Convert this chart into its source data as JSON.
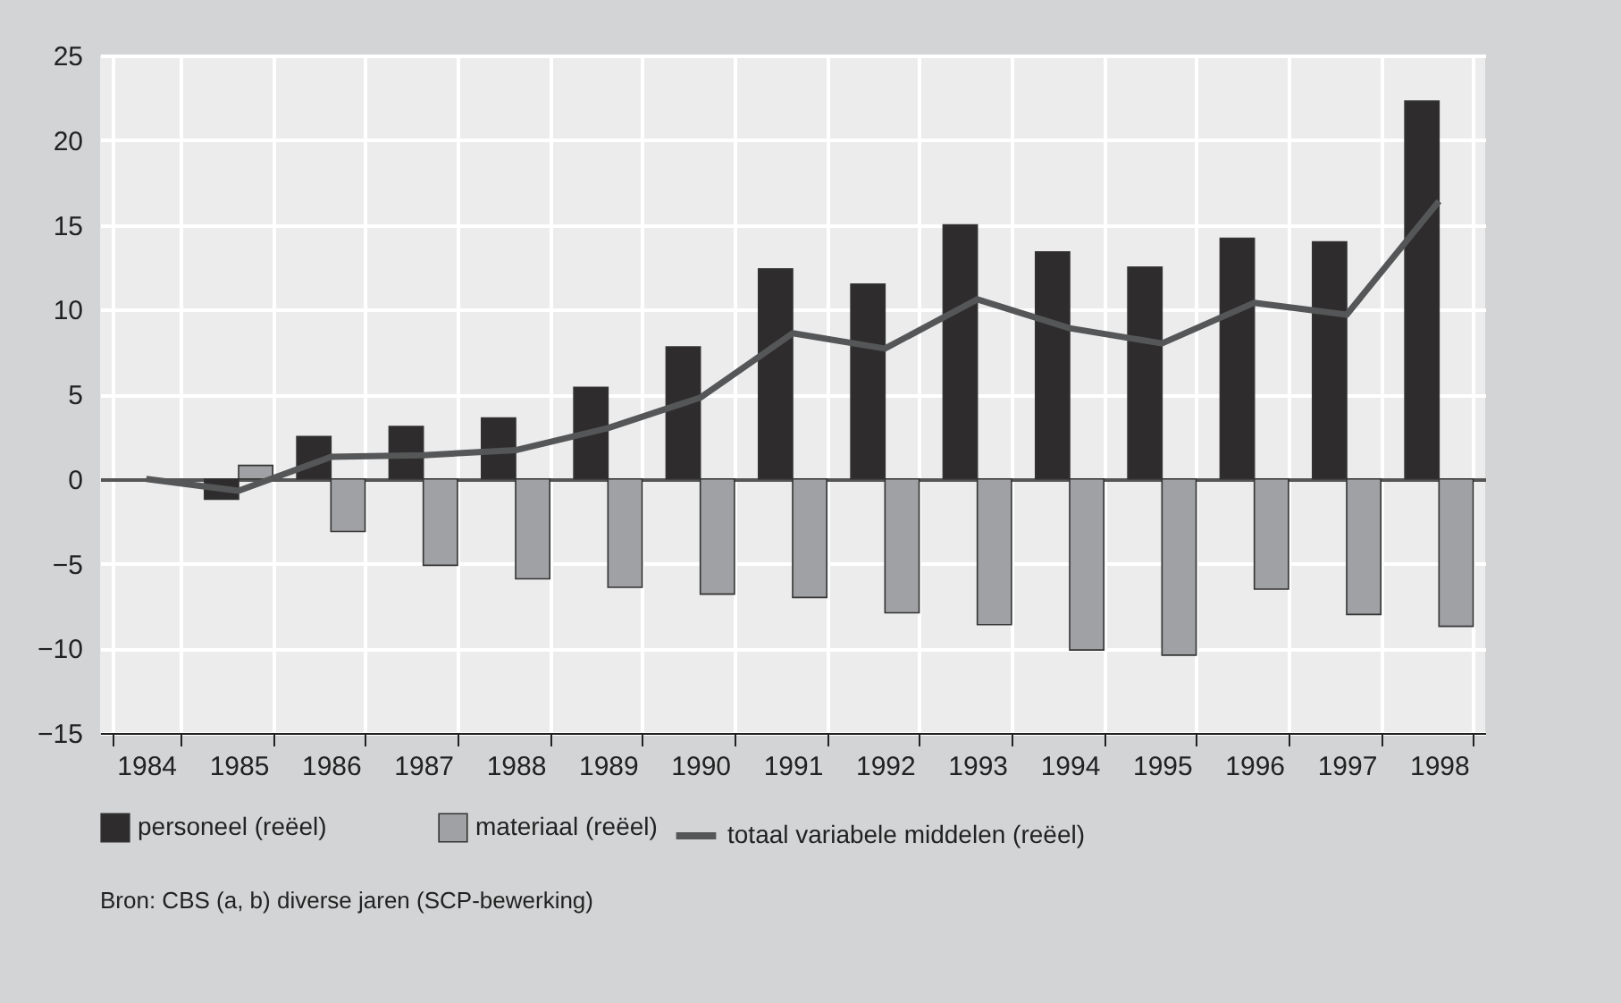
{
  "chart_data": {
    "type": "bar",
    "categories": [
      "1984",
      "1985",
      "1986",
      "1987",
      "1988",
      "1989",
      "1990",
      "1991",
      "1992",
      "1993",
      "1994",
      "1995",
      "1996",
      "1997",
      "1998"
    ],
    "series": [
      {
        "name": "personeel (reëel)",
        "color": "#2e2c2d",
        "values": [
          0,
          -1.2,
          2.5,
          3.1,
          3.6,
          5.4,
          7.8,
          12.4,
          11.5,
          15.0,
          13.4,
          12.5,
          14.2,
          14.0,
          22.3
        ]
      },
      {
        "name": "materiaal (reëel)",
        "color": "#a0a1a4",
        "values": [
          0,
          0.8,
          -3.1,
          -5.1,
          -5.9,
          -6.4,
          -6.8,
          -7.0,
          -7.9,
          -8.6,
          -10.1,
          -10.4,
          -6.5,
          -8.0,
          -8.7
        ]
      },
      {
        "name": "totaal variabele middelen (reëel)",
        "type": "line",
        "color": "#555657",
        "values": [
          0,
          -0.7,
          1.3,
          1.4,
          1.7,
          3.0,
          4.8,
          8.6,
          7.7,
          10.6,
          8.9,
          8.0,
          10.4,
          9.7,
          16.4
        ]
      }
    ],
    "ylim": [
      -15,
      25
    ],
    "yticks": [
      -15,
      -10,
      -5,
      0,
      5,
      10,
      15,
      20,
      25
    ],
    "grid": true,
    "legend": "bottom",
    "annotations": [
      "Bron: CBS (a, b) diverse jaren (SCP-bewerking)"
    ]
  }
}
